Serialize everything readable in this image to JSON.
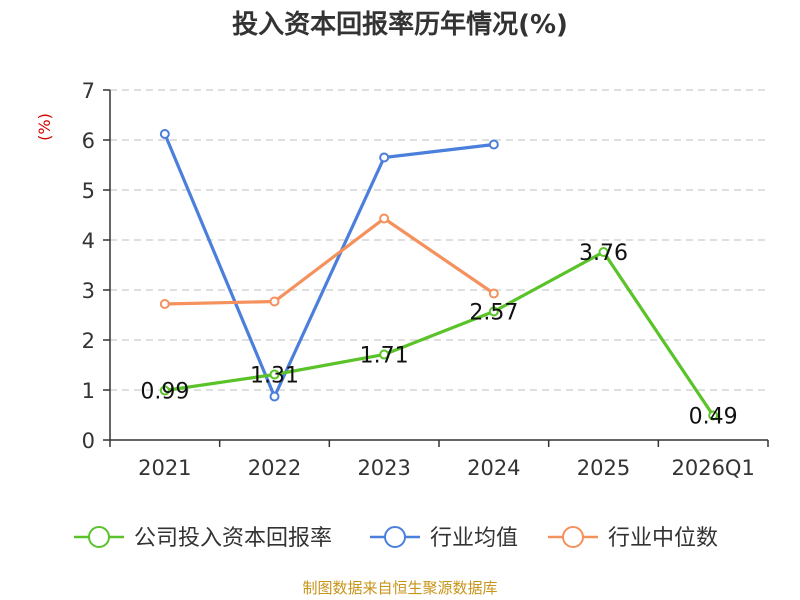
{
  "chart_data": {
    "type": "line",
    "title": "投入资本回报率历年情况(%)",
    "ylabel": "(%)",
    "xlabel": "",
    "ylim": [
      0,
      7
    ],
    "yticks": [
      0,
      1,
      2,
      3,
      4,
      5,
      6,
      7
    ],
    "categories": [
      "2021",
      "2022",
      "2023",
      "2024",
      "2025",
      "2026Q1"
    ],
    "grid": true,
    "legend_position": "bottom",
    "series": [
      {
        "name": "公司投入资本回报率",
        "color": "#5bc32a",
        "values": [
          0.99,
          1.31,
          1.71,
          2.57,
          3.76,
          0.49
        ],
        "labels": [
          "0.99",
          "1.31",
          "1.71",
          "2.57",
          "3.76",
          "0.49"
        ]
      },
      {
        "name": "行业均值",
        "color": "#4a7fdb",
        "values": [
          6.12,
          0.87,
          5.65,
          5.91,
          null,
          null
        ]
      },
      {
        "name": "行业中位数",
        "color": "#f5915c",
        "values": [
          2.72,
          2.77,
          4.43,
          2.93,
          null,
          null
        ]
      }
    ],
    "source": "制图数据来自恒生聚源数据库"
  }
}
